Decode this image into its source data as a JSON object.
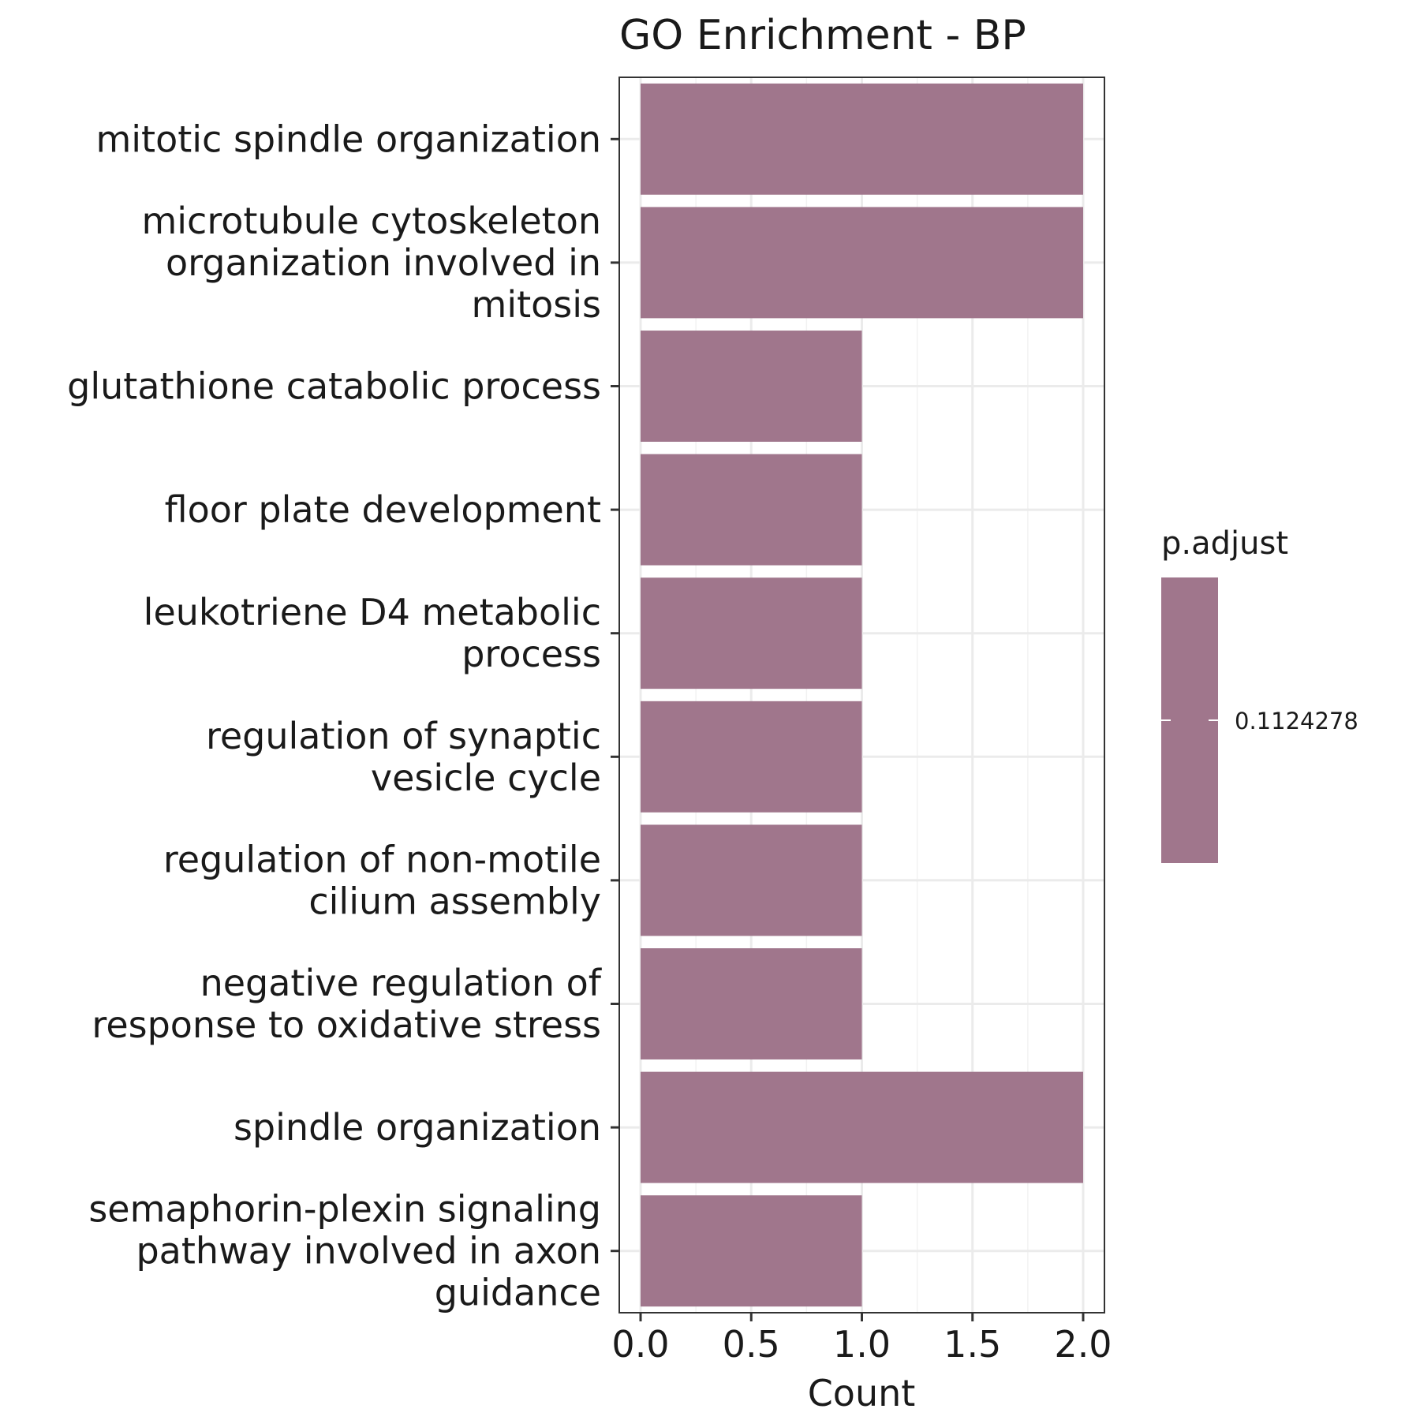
{
  "chart_data": {
    "type": "bar",
    "orientation": "horizontal",
    "title": "GO Enrichment - BP",
    "xlabel": "Count",
    "ylabel": "",
    "xlim": [
      0,
      2.0
    ],
    "xticks": [
      "0.0",
      "0.5",
      "1.0",
      "1.5",
      "2.0"
    ],
    "grid": true,
    "categories": [
      [
        "mitotic spindle organization"
      ],
      [
        "microtubule cytoskeleton",
        "organization involved in",
        "mitosis"
      ],
      [
        "glutathione catabolic process"
      ],
      [
        "floor plate development"
      ],
      [
        "leukotriene D4 metabolic",
        "process"
      ],
      [
        "regulation of synaptic",
        "vesicle cycle"
      ],
      [
        "regulation of non-motile",
        "cilium assembly"
      ],
      [
        "negative regulation of",
        "response to oxidative stress"
      ],
      [
        "spindle organization"
      ],
      [
        "semaphorin-plexin signaling",
        "pathway involved in axon",
        "guidance"
      ]
    ],
    "values": [
      2,
      2,
      1,
      1,
      1,
      1,
      1,
      1,
      2,
      1
    ],
    "bar_color": "#a0768c",
    "legend": {
      "title": "p.adjust",
      "value_label": "0.1124278",
      "position": "right"
    }
  }
}
